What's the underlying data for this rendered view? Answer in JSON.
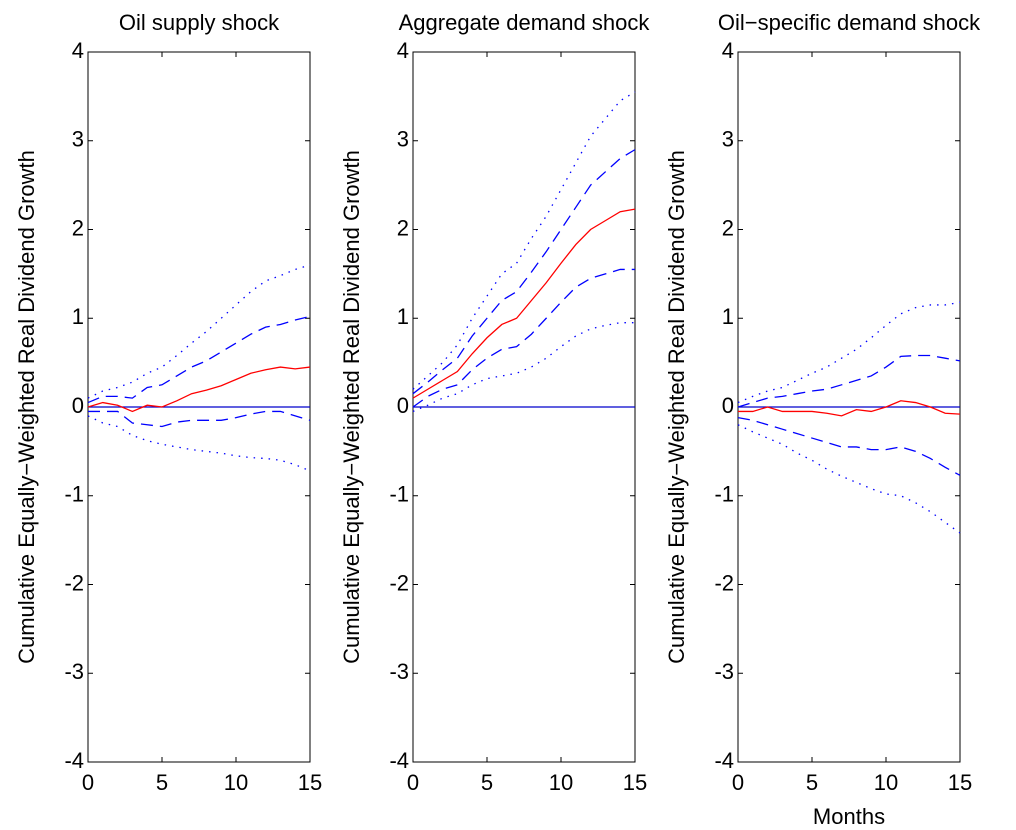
{
  "chart_data": [
    {
      "type": "line",
      "title": "Oil supply shock",
      "ylabel": "Cumulative Equally−Weighted Real Dividend Growth",
      "x": [
        0,
        1,
        2,
        3,
        4,
        5,
        6,
        7,
        8,
        9,
        10,
        11,
        12,
        13,
        14,
        15
      ],
      "xlim": [
        0,
        15
      ],
      "xticks": [
        0,
        5,
        10,
        15
      ],
      "ylim": [
        -4,
        4
      ],
      "yticks": [
        -4,
        -3,
        -2,
        -1,
        0,
        1,
        2,
        3,
        4
      ],
      "hline": 0,
      "hline_color": "#0000cc",
      "series": [
        {
          "color": "#ff0000",
          "dash": "solid",
          "values": [
            0.0,
            0.05,
            0.02,
            -0.05,
            0.02,
            0.0,
            0.07,
            0.15,
            0.19,
            0.24,
            0.31,
            0.38,
            0.42,
            0.45,
            0.43,
            0.45
          ]
        },
        {
          "color": "#0000ff",
          "dash": "dashed",
          "values": [
            0.05,
            0.12,
            0.12,
            0.1,
            0.22,
            0.25,
            0.35,
            0.45,
            0.52,
            0.62,
            0.72,
            0.82,
            0.9,
            0.93,
            0.98,
            1.02
          ]
        },
        {
          "color": "#0000ff",
          "dash": "dashed",
          "values": [
            -0.05,
            -0.05,
            -0.05,
            -0.18,
            -0.2,
            -0.22,
            -0.17,
            -0.15,
            -0.15,
            -0.15,
            -0.12,
            -0.08,
            -0.05,
            -0.05,
            -0.1,
            -0.15
          ]
        },
        {
          "color": "#0000ff",
          "dash": "dotted",
          "values": [
            0.1,
            0.18,
            0.22,
            0.28,
            0.38,
            0.45,
            0.58,
            0.72,
            0.85,
            1.0,
            1.15,
            1.3,
            1.42,
            1.48,
            1.55,
            1.6
          ]
        },
        {
          "color": "#0000ff",
          "dash": "dotted",
          "values": [
            -0.1,
            -0.18,
            -0.22,
            -0.32,
            -0.38,
            -0.42,
            -0.45,
            -0.48,
            -0.5,
            -0.52,
            -0.55,
            -0.57,
            -0.58,
            -0.6,
            -0.65,
            -0.72
          ]
        }
      ]
    },
    {
      "type": "line",
      "title": "Aggregate demand shock",
      "ylabel": "Cumulative Equally−Weighted Real Dividend Growth",
      "x": [
        0,
        1,
        2,
        3,
        4,
        5,
        6,
        7,
        8,
        9,
        10,
        11,
        12,
        13,
        14,
        15
      ],
      "xlim": [
        0,
        15
      ],
      "xticks": [
        0,
        5,
        10,
        15
      ],
      "ylim": [
        -4,
        4
      ],
      "yticks": [
        -4,
        -3,
        -2,
        -1,
        0,
        1,
        2,
        3,
        4
      ],
      "hline": 0,
      "hline_color": "#0000cc",
      "series": [
        {
          "color": "#ff0000",
          "dash": "solid",
          "values": [
            0.1,
            0.2,
            0.3,
            0.4,
            0.6,
            0.78,
            0.93,
            1.0,
            1.2,
            1.4,
            1.62,
            1.83,
            2.0,
            2.1,
            2.2,
            2.23
          ]
        },
        {
          "color": "#0000ff",
          "dash": "dashed",
          "values": [
            0.15,
            0.28,
            0.42,
            0.55,
            0.8,
            1.0,
            1.2,
            1.3,
            1.52,
            1.75,
            2.0,
            2.25,
            2.5,
            2.65,
            2.8,
            2.9
          ]
        },
        {
          "color": "#0000ff",
          "dash": "dashed",
          "values": [
            0.0,
            0.12,
            0.2,
            0.25,
            0.42,
            0.55,
            0.65,
            0.68,
            0.82,
            1.0,
            1.18,
            1.35,
            1.45,
            1.5,
            1.55,
            1.55
          ]
        },
        {
          "color": "#0000ff",
          "dash": "dotted",
          "values": [
            0.2,
            0.35,
            0.5,
            0.7,
            1.0,
            1.25,
            1.5,
            1.62,
            1.9,
            2.15,
            2.45,
            2.75,
            3.05,
            3.25,
            3.45,
            3.55
          ]
        },
        {
          "color": "#0000ff",
          "dash": "dotted",
          "values": [
            -0.05,
            0.02,
            0.1,
            0.15,
            0.25,
            0.32,
            0.35,
            0.38,
            0.45,
            0.55,
            0.68,
            0.8,
            0.88,
            0.92,
            0.95,
            0.95
          ]
        }
      ]
    },
    {
      "type": "line",
      "title": "Oil−specific demand shock",
      "ylabel": "Cumulative Equally−Weighted Real Dividend Growth",
      "xlabel": "Months",
      "x": [
        0,
        1,
        2,
        3,
        4,
        5,
        6,
        7,
        8,
        9,
        10,
        11,
        12,
        13,
        14,
        15
      ],
      "xlim": [
        0,
        15
      ],
      "xticks": [
        0,
        5,
        10,
        15
      ],
      "ylim": [
        -4,
        4
      ],
      "yticks": [
        -4,
        -3,
        -2,
        -1,
        0,
        1,
        2,
        3,
        4
      ],
      "hline": 0,
      "hline_color": "#0000cc",
      "series": [
        {
          "color": "#ff0000",
          "dash": "solid",
          "values": [
            -0.05,
            -0.05,
            0.0,
            -0.05,
            -0.05,
            -0.05,
            -0.07,
            -0.1,
            -0.03,
            -0.05,
            0.0,
            0.07,
            0.05,
            0.0,
            -0.07,
            -0.08
          ]
        },
        {
          "color": "#0000ff",
          "dash": "dashed",
          "values": [
            0.0,
            0.05,
            0.1,
            0.12,
            0.15,
            0.18,
            0.2,
            0.25,
            0.3,
            0.35,
            0.45,
            0.57,
            0.58,
            0.58,
            0.55,
            0.52
          ]
        },
        {
          "color": "#0000ff",
          "dash": "dashed",
          "values": [
            -0.12,
            -0.15,
            -0.2,
            -0.25,
            -0.3,
            -0.35,
            -0.4,
            -0.45,
            -0.45,
            -0.48,
            -0.48,
            -0.45,
            -0.5,
            -0.58,
            -0.68,
            -0.77
          ]
        },
        {
          "color": "#0000ff",
          "dash": "dotted",
          "values": [
            0.05,
            0.12,
            0.18,
            0.22,
            0.3,
            0.38,
            0.45,
            0.55,
            0.65,
            0.78,
            0.92,
            1.05,
            1.12,
            1.15,
            1.15,
            1.18
          ]
        },
        {
          "color": "#0000ff",
          "dash": "dotted",
          "values": [
            -0.2,
            -0.28,
            -0.35,
            -0.42,
            -0.52,
            -0.6,
            -0.7,
            -0.78,
            -0.85,
            -0.92,
            -0.98,
            -1.0,
            -1.08,
            -1.18,
            -1.3,
            -1.42
          ]
        }
      ]
    }
  ]
}
